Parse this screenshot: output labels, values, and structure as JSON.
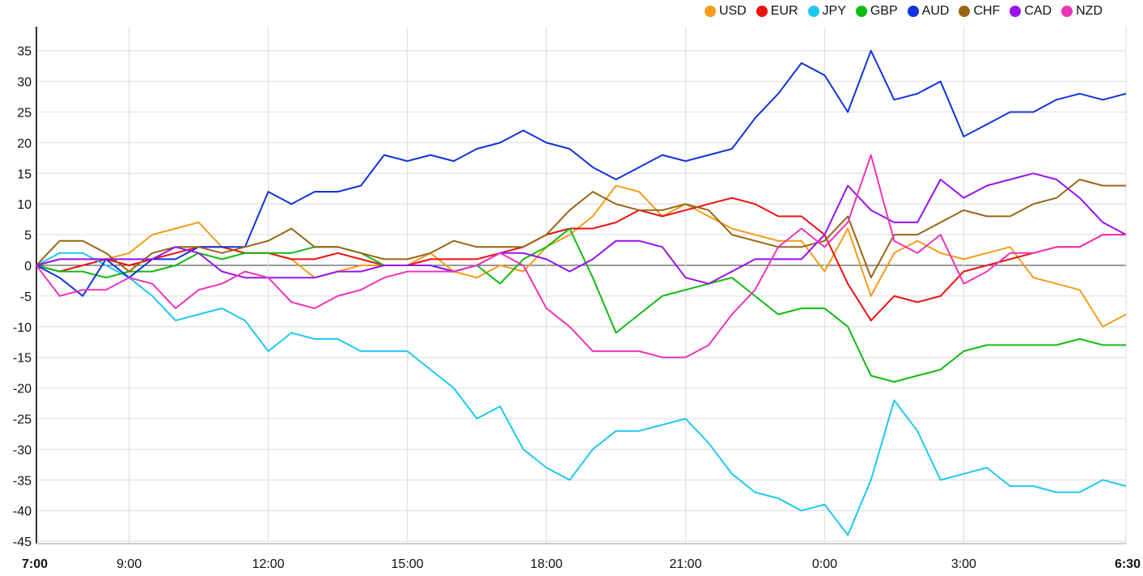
{
  "chart_data": {
    "type": "line",
    "title": "",
    "xlabel": "",
    "ylabel": "",
    "ylim": [
      -46,
      38.5
    ],
    "yticks": [
      35,
      30,
      25,
      20,
      15,
      10,
      5,
      0,
      -5,
      -10,
      -15,
      -20,
      -25,
      -30,
      -35,
      -40,
      -45
    ],
    "xticks": [
      {
        "label": "7:00",
        "bold": true
      },
      {
        "label": "9:00",
        "bold": false
      },
      {
        "label": "12:00",
        "bold": false
      },
      {
        "label": "15:00",
        "bold": false
      },
      {
        "label": "18:00",
        "bold": false
      },
      {
        "label": "21:00",
        "bold": false
      },
      {
        "label": "0:00",
        "bold": false
      },
      {
        "label": "3:00",
        "bold": false
      },
      {
        "label": "6:30",
        "bold": true
      }
    ],
    "grid": true,
    "legend_position": "top-right",
    "x": [
      "7:00",
      "7:30",
      "8:00",
      "8:30",
      "9:00",
      "9:30",
      "10:00",
      "10:30",
      "11:00",
      "11:30",
      "12:00",
      "12:30",
      "13:00",
      "13:30",
      "14:00",
      "14:30",
      "15:00",
      "15:30",
      "16:00",
      "16:30",
      "17:00",
      "17:30",
      "18:00",
      "18:30",
      "19:00",
      "19:30",
      "20:00",
      "20:30",
      "21:00",
      "21:30",
      "22:00",
      "22:30",
      "23:00",
      "23:30",
      "0:00",
      "0:30",
      "1:00",
      "1:30",
      "2:00",
      "2:30",
      "3:00",
      "3:30",
      "4:00",
      "4:30",
      "5:00",
      "5:30",
      "6:00",
      "6:30"
    ],
    "series": [
      {
        "name": "USD",
        "color": "#f39c1a",
        "values": [
          0,
          1,
          1,
          1,
          2,
          5,
          6,
          7,
          3,
          2,
          2,
          1,
          -2,
          -1,
          0,
          0,
          0,
          2,
          -1,
          -2,
          0,
          -1,
          3,
          5,
          8,
          13,
          12,
          8,
          10,
          8,
          6,
          5,
          4,
          4,
          -1,
          6,
          -5,
          2,
          4,
          2,
          1,
          2,
          3,
          -2,
          -3,
          -4,
          -10,
          -8
        ]
      },
      {
        "name": "EUR",
        "color": "#ee1111",
        "values": [
          0,
          -1,
          0,
          1,
          0,
          1,
          2,
          3,
          3,
          2,
          2,
          1,
          1,
          2,
          1,
          0,
          0,
          1,
          1,
          1,
          2,
          3,
          5,
          6,
          6,
          7,
          9,
          8,
          9,
          10,
          11,
          10,
          8,
          8,
          5,
          -3,
          -9,
          -5,
          -6,
          -5,
          -1,
          0,
          1,
          2,
          3,
          3,
          5,
          5
        ]
      },
      {
        "name": "JPY",
        "color": "#1ec8f0",
        "values": [
          0,
          2,
          2,
          0,
          -2,
          -5,
          -9,
          -8,
          -7,
          -9,
          -14,
          -11,
          -12,
          -12,
          -14,
          -14,
          -14,
          -17,
          -20,
          -25,
          -23,
          -30,
          -33,
          -35,
          -30,
          -27,
          -27,
          -26,
          -25,
          -29,
          -34,
          -37,
          -38,
          -40,
          -39,
          -44,
          -35,
          -22,
          -27,
          -35,
          -34,
          -33,
          -36,
          -36,
          -37,
          -37,
          -35,
          -36
        ]
      },
      {
        "name": "GBP",
        "color": "#11bb11",
        "values": [
          0,
          -1,
          -1,
          -2,
          -1,
          -1,
          0,
          2,
          1,
          2,
          2,
          2,
          3,
          3,
          2,
          0,
          0,
          0,
          -1,
          0,
          -3,
          1,
          3,
          6,
          -2,
          -11,
          -8,
          -5,
          -4,
          -3,
          -2,
          -5,
          -8,
          -7,
          -7,
          -10,
          -18,
          -19,
          -18,
          -17,
          -14,
          -13,
          -13,
          -13,
          -13,
          -12,
          -13,
          -13
        ]
      },
      {
        "name": "AUD",
        "color": "#1133dd",
        "values": [
          0,
          -2,
          -5,
          1,
          -2,
          1,
          1,
          3,
          3,
          3,
          12,
          10,
          12,
          12,
          13,
          18,
          17,
          18,
          17,
          19,
          20,
          22,
          20,
          19,
          16,
          14,
          16,
          18,
          17,
          18,
          19,
          24,
          28,
          33,
          31,
          25,
          35,
          27,
          28,
          30,
          21,
          23,
          25,
          25,
          27,
          28,
          27,
          28
        ]
      },
      {
        "name": "CHF",
        "color": "#996611",
        "values": [
          0,
          4,
          4,
          2,
          -1,
          2,
          3,
          3,
          2,
          3,
          4,
          6,
          3,
          3,
          2,
          1,
          1,
          2,
          4,
          3,
          3,
          3,
          5,
          9,
          12,
          10,
          9,
          9,
          10,
          9,
          5,
          4,
          3,
          3,
          4,
          8,
          -2,
          5,
          5,
          7,
          9,
          8,
          8,
          10,
          11,
          14,
          13,
          13
        ]
      },
      {
        "name": "CAD",
        "color": "#9911ee",
        "values": [
          0,
          1,
          1,
          1,
          1,
          1,
          3,
          2,
          -1,
          -2,
          -2,
          -2,
          -2,
          -1,
          -1,
          0,
          0,
          0,
          -1,
          0,
          2,
          2,
          1,
          -1,
          1,
          4,
          4,
          3,
          -2,
          -3,
          -1,
          1,
          1,
          1,
          5,
          13,
          9,
          7,
          7,
          14,
          11,
          13,
          14,
          15,
          14,
          11,
          7,
          5
        ]
      },
      {
        "name": "NZD",
        "color": "#ee33bb",
        "values": [
          0,
          -5,
          -4,
          -4,
          -2,
          -3,
          -7,
          -4,
          -3,
          -1,
          -2,
          -6,
          -7,
          -5,
          -4,
          -2,
          -1,
          -1,
          -1,
          0,
          2,
          0,
          -7,
          -10,
          -14,
          -14,
          -14,
          -15,
          -15,
          -13,
          -8,
          -4,
          3,
          6,
          3,
          7,
          18,
          4,
          2,
          5,
          -3,
          -1,
          2,
          2,
          3,
          3,
          5,
          5
        ]
      }
    ]
  }
}
